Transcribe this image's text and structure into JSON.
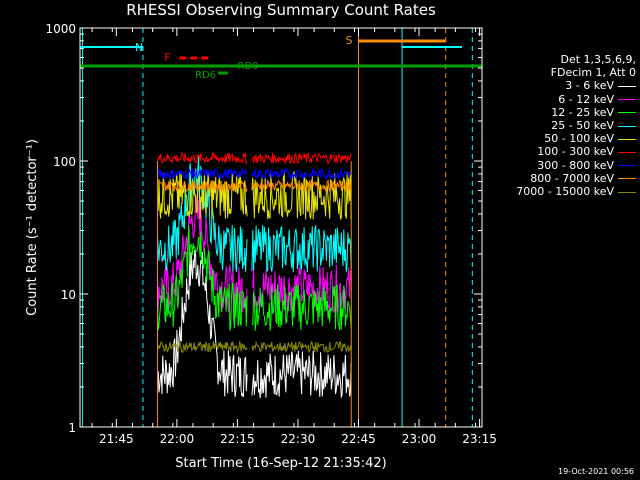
{
  "chart_data": {
    "type": "line",
    "title": "RHESSI Observing Summary Count Rates",
    "xlabel": "Start Time (16-Sep-12 21:35:42)",
    "ylabel": "Count Rate (s⁻¹ detector⁻¹)",
    "yscale": "log",
    "ylim": [
      1,
      1000
    ],
    "xlim_minutes": [
      21.6,
      23.26
    ],
    "x_ticks": [
      "21:45",
      "22:00",
      "22:15",
      "22:30",
      "22:45",
      "23:00",
      "23:15"
    ],
    "y_ticks": [
      "1",
      "10",
      "100",
      "1000"
    ],
    "legend_header": [
      "Det 1,3,5,6,9,",
      "FDecim 1, Att 0"
    ],
    "legend_placement": "right",
    "series": [
      {
        "name": "3 - 6 keV",
        "color": "#ffffff",
        "level": 2.5
      },
      {
        "name": "6 - 12 keV",
        "color": "#ff00ff",
        "level": 11
      },
      {
        "name": "12 - 25 keV",
        "color": "#00ff00",
        "level": 8
      },
      {
        "name": "25 - 50 keV",
        "color": "#00ffff",
        "level": 22
      },
      {
        "name": "50 - 100 keV",
        "color": "#e6e600",
        "level": 55
      },
      {
        "name": "100 - 300 keV",
        "color": "#ff0000",
        "level": 105
      },
      {
        "name": "300 - 800 keV",
        "color": "#0000ff",
        "level": 80
      },
      {
        "name": "800 - 7000 keV",
        "color": "#ff8c00",
        "level": 65
      },
      {
        "name": "7000 - 15000 keV",
        "color": "#8b8b00",
        "level": 4
      }
    ],
    "annotations": {
      "flags": [
        {
          "label": "N",
          "color": "#00ffff"
        },
        {
          "label": "F",
          "color": "#ff0000"
        },
        {
          "label": "RD0",
          "color": "#00a000"
        },
        {
          "label": "RD6",
          "color": "#00a000"
        },
        {
          "label": "S",
          "color": "#ff8c00"
        }
      ]
    }
  },
  "timestamp": "19-Oct-2021 00:56"
}
